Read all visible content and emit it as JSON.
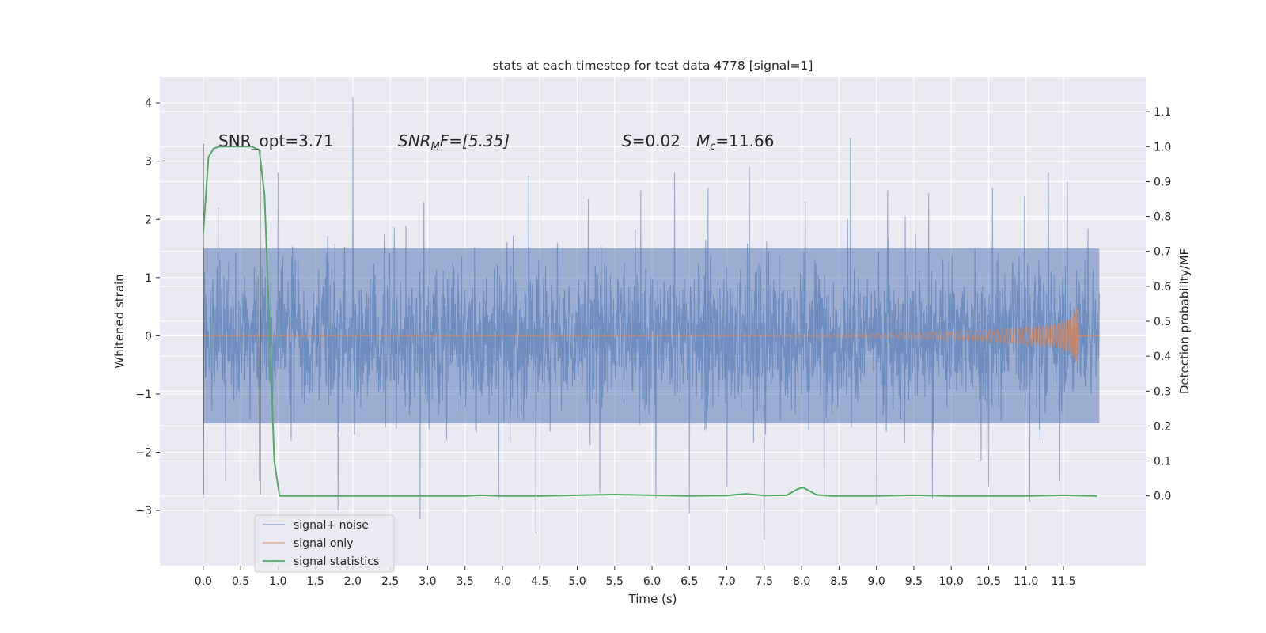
{
  "chart_data": {
    "type": "line",
    "title": "stats at each timestep for test data 4778 [signal=1]",
    "xlabel": "Time (s)",
    "ylabel": "Whitened strain",
    "ylabel_right": "Detection probability/MF",
    "xlim": [
      -0.58,
      12.6
    ],
    "ylim": [
      -3.95,
      4.45
    ],
    "ylim_right": [
      -0.2,
      1.2
    ],
    "x_ticks": [
      0.0,
      0.5,
      1.0,
      1.5,
      2.0,
      2.5,
      3.0,
      3.5,
      4.0,
      4.5,
      5.0,
      5.5,
      6.0,
      6.5,
      7.0,
      7.5,
      8.0,
      8.5,
      9.0,
      9.5,
      10.0,
      10.5,
      11.0,
      11.5
    ],
    "x_tick_labels": [
      "0.0",
      "0.5",
      "1.0",
      "1.5",
      "2.0",
      "2.5",
      "3.0",
      "3.5",
      "4.0",
      "4.5",
      "5.0",
      "5.5",
      "6.0",
      "6.5",
      "7.0",
      "7.5",
      "8.0",
      "8.5",
      "9.0",
      "9.5",
      "10.0",
      "10.5",
      "11.0",
      "11.5"
    ],
    "y_ticks": [
      -3,
      -2,
      -1,
      0,
      1,
      2,
      3,
      4
    ],
    "y_tick_labels": [
      "−3",
      "−2",
      "−1",
      "0",
      "1",
      "2",
      "3",
      "4"
    ],
    "y_right_ticks": [
      0.0,
      0.1,
      0.2,
      0.3,
      0.4,
      0.5,
      0.6,
      0.7,
      0.8,
      0.9,
      1.0,
      1.1
    ],
    "y_right_tick_labels": [
      "0.0",
      "0.1",
      "0.2",
      "0.3",
      "0.4",
      "0.5",
      "0.6",
      "0.7",
      "0.8",
      "0.9",
      "1.0",
      "1.1"
    ],
    "grid": true,
    "legend_position": "lower-left",
    "series": [
      {
        "name": "signal+ noise",
        "axis": "left",
        "color": "#4c72b0",
        "style": "dense noisy strain, approx. 0 to 12 s",
        "x_range": [
          0.0,
          11.98
        ],
        "band": [
          -1.5,
          1.5
        ],
        "peaks": [
          [
            0.2,
            2.2
          ],
          [
            0.75,
            3.2
          ],
          [
            1.0,
            2.8
          ],
          [
            2.0,
            4.1
          ],
          [
            2.95,
            2.3
          ],
          [
            3.95,
            3.0
          ],
          [
            4.35,
            2.75
          ],
          [
            5.15,
            2.35
          ],
          [
            5.85,
            2.5
          ],
          [
            6.3,
            2.8
          ],
          [
            6.75,
            2.55
          ],
          [
            7.3,
            2.9
          ],
          [
            8.05,
            2.3
          ],
          [
            8.65,
            3.4
          ],
          [
            9.15,
            2.5
          ],
          [
            9.7,
            2.45
          ],
          [
            10.55,
            2.55
          ],
          [
            10.98,
            2.4
          ],
          [
            11.3,
            2.8
          ],
          [
            11.55,
            2.65
          ]
        ],
        "troughs": [
          [
            0.0,
            -2.8
          ],
          [
            0.3,
            -2.5
          ],
          [
            0.75,
            -2.5
          ],
          [
            1.8,
            -3.0
          ],
          [
            2.9,
            -3.15
          ],
          [
            3.95,
            -2.8
          ],
          [
            4.45,
            -3.4
          ],
          [
            5.3,
            -2.7
          ],
          [
            6.05,
            -2.8
          ],
          [
            6.5,
            -3.05
          ],
          [
            7.0,
            -2.6
          ],
          [
            7.5,
            -3.5
          ],
          [
            8.3,
            -2.8
          ],
          [
            9.0,
            -2.9
          ],
          [
            9.75,
            -2.8
          ],
          [
            10.5,
            -2.6
          ],
          [
            11.05,
            -2.85
          ],
          [
            11.45,
            -2.5
          ]
        ]
      },
      {
        "name": "signal only",
        "axis": "left",
        "color": "#dd8452",
        "style": "chirp growing to merger",
        "x_range": [
          0.0,
          11.98
        ],
        "envelope": [
          [
            0.0,
            0.0
          ],
          [
            7.5,
            0.01
          ],
          [
            9.5,
            0.05
          ],
          [
            10.5,
            0.1
          ],
          [
            11.0,
            0.15
          ],
          [
            11.4,
            0.2
          ],
          [
            11.6,
            0.3
          ],
          [
            11.68,
            0.5
          ],
          [
            11.71,
            0.0
          ],
          [
            11.98,
            0.0
          ]
        ]
      },
      {
        "name": "signal statistics",
        "axis": "right",
        "color": "#55a868",
        "x": [
          0.0,
          0.07,
          0.14,
          0.22,
          0.35,
          0.5,
          0.65,
          0.75,
          0.82,
          0.9,
          0.95,
          1.02,
          1.5,
          2.0,
          3.0,
          3.5,
          3.7,
          4.0,
          4.5,
          5.0,
          5.5,
          5.7,
          6.0,
          6.5,
          7.0,
          7.25,
          7.5,
          7.8,
          7.95,
          8.02,
          8.2,
          8.4,
          9.0,
          9.5,
          10.0,
          10.5,
          11.0,
          11.5,
          11.95
        ],
        "y": [
          0.75,
          0.97,
          0.995,
          1.0,
          1.0,
          1.0,
          1.0,
          0.99,
          0.86,
          0.4,
          0.1,
          0.0,
          0.0,
          0.0,
          0.0,
          0.0,
          0.002,
          0.0,
          0.0,
          0.002,
          0.004,
          0.003,
          0.002,
          0.0,
          0.001,
          0.006,
          0.001,
          0.002,
          0.02,
          0.024,
          0.003,
          0.0,
          0.0,
          0.002,
          0.0,
          0.0,
          0.0,
          0.002,
          0.0
        ]
      }
    ],
    "vertical_markers": [
      {
        "x": 0.0,
        "y_top": 3.3,
        "y_bottom": -2.72,
        "color": "#262626"
      },
      {
        "x": 0.76,
        "y_top": 3.2,
        "y_bottom": -2.72,
        "color": "#262626"
      }
    ],
    "annotations": [
      {
        "text": "SNR_opt=3.71",
        "x": 0.2,
        "y": 3.3
      },
      {
        "text": "SNR_MF=[5.35]",
        "x": 2.62,
        "y": 3.3
      },
      {
        "text": "S=0.02",
        "x": 5.6,
        "y": 3.3
      },
      {
        "text": "M_c=11.66",
        "x": 6.6,
        "y": 3.3
      }
    ],
    "annotation_labels": {
      "snr_opt": "SNR_opt=3.71",
      "snr_mf_main": "SNR",
      "snr_mf_sub": "M",
      "snr_mf_rest": "F=[5.35]",
      "s_sym": "S",
      "s_rest": "=0.02",
      "mc_main": "M",
      "mc_sub": "c",
      "mc_rest": "=11.66"
    },
    "colors": {
      "plot_bg": "#eaeaf2",
      "grid": "#ffffff",
      "text": "#262626"
    }
  }
}
